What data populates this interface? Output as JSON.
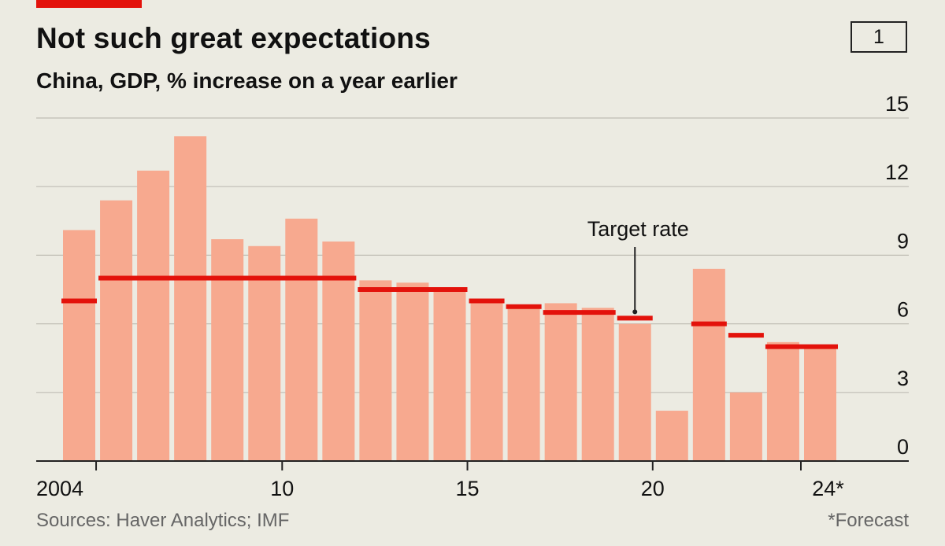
{
  "header": {
    "title": "Not such great expectations",
    "subtitle": "China, GDP, % increase on a year earlier",
    "chart_number": "1"
  },
  "footer": {
    "source": "Sources: Haver Analytics; IMF",
    "footnote": "*Forecast"
  },
  "colors": {
    "background": "#ecebe2",
    "bar": "#f7a98f",
    "target": "#e3120b",
    "gridline": "#bfbdb4",
    "axis": "#222222",
    "text": "#111111"
  },
  "chart_data": {
    "type": "bar",
    "title": "Not such great expectations",
    "subtitle": "China, GDP, % increase on a year earlier",
    "xlabel": "",
    "ylabel": "",
    "ylim": [
      0,
      15
    ],
    "y_ticks": [
      0,
      3,
      6,
      9,
      12,
      15
    ],
    "grid": true,
    "categories": [
      2004,
      2005,
      2006,
      2007,
      2008,
      2009,
      2010,
      2011,
      2012,
      2013,
      2014,
      2015,
      2016,
      2017,
      2018,
      2019,
      2020,
      2021,
      2022,
      2023,
      2024
    ],
    "x_tick_labels": [
      {
        "category": 2004,
        "label": "2004"
      },
      {
        "category": 2010,
        "label": "10"
      },
      {
        "category": 2015,
        "label": "15"
      },
      {
        "category": 2020,
        "label": "20"
      },
      {
        "category": 2024,
        "label": "24*"
      }
    ],
    "series": [
      {
        "name": "GDP growth",
        "kind": "bar",
        "values": [
          10.1,
          11.4,
          12.7,
          14.2,
          9.7,
          9.4,
          10.6,
          9.6,
          7.9,
          7.8,
          7.5,
          7.0,
          6.8,
          6.9,
          6.7,
          6.0,
          2.2,
          8.4,
          3.0,
          5.2,
          5.0
        ]
      },
      {
        "name": "Target rate",
        "kind": "target",
        "values": [
          7.0,
          8.0,
          8.0,
          8.0,
          8.0,
          8.0,
          8.0,
          8.0,
          7.5,
          7.5,
          7.5,
          7.0,
          6.75,
          6.5,
          6.5,
          6.25,
          null,
          6.0,
          5.5,
          5.0,
          5.0
        ]
      }
    ],
    "annotations": [
      {
        "text": "Target rate",
        "category": 2019
      }
    ]
  }
}
